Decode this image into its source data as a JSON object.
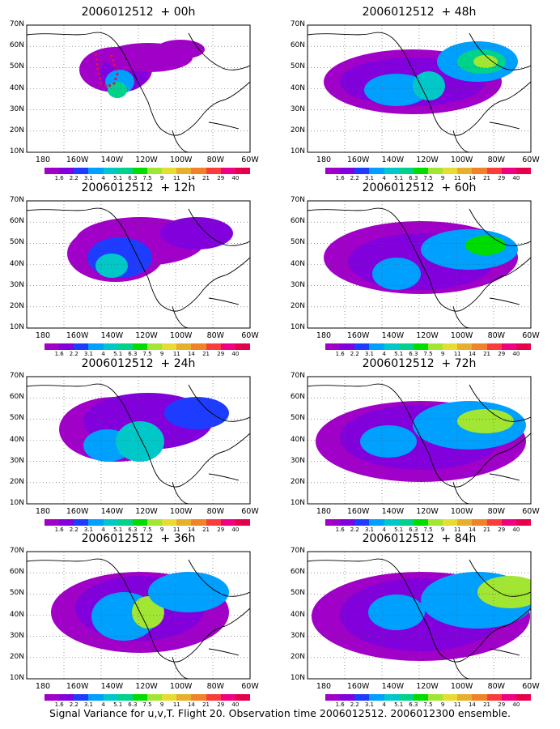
{
  "panels": [
    {
      "title": "2006012512  + 00h"
    },
    {
      "title": "2006012512  + 48h"
    },
    {
      "title": "2006012512  + 12h"
    },
    {
      "title": "2006012512  + 60h"
    },
    {
      "title": "2006012512  + 24h"
    },
    {
      "title": "2006012512  + 72h"
    },
    {
      "title": "2006012512  + 36h"
    },
    {
      "title": "2006012512  + 84h"
    }
  ],
  "lat_labels": [
    "70N",
    "60N",
    "50N",
    "40N",
    "30N",
    "20N",
    "10N"
  ],
  "lon_labels": [
    "180",
    "160W",
    "140W",
    "120W",
    "100W",
    "80W",
    "60W"
  ],
  "colorbar": {
    "labels": [
      "1.6",
      "2.2",
      "3.1",
      "4",
      "5.1",
      "6.3",
      "7.5",
      "9",
      "11",
      "14",
      "21",
      "29",
      "40"
    ],
    "colors": [
      "#a000c8",
      "#8200dc",
      "#1e3cff",
      "#00a0ff",
      "#00c8c8",
      "#00d28c",
      "#00dc00",
      "#a0e632",
      "#e6dc32",
      "#e6af2d",
      "#f08228",
      "#fa3c3c",
      "#f00082"
    ]
  },
  "footer": "Signal Variance for u,v,T. Flight 20. Observation time 2006012512. 2006012300 ensemble."
}
